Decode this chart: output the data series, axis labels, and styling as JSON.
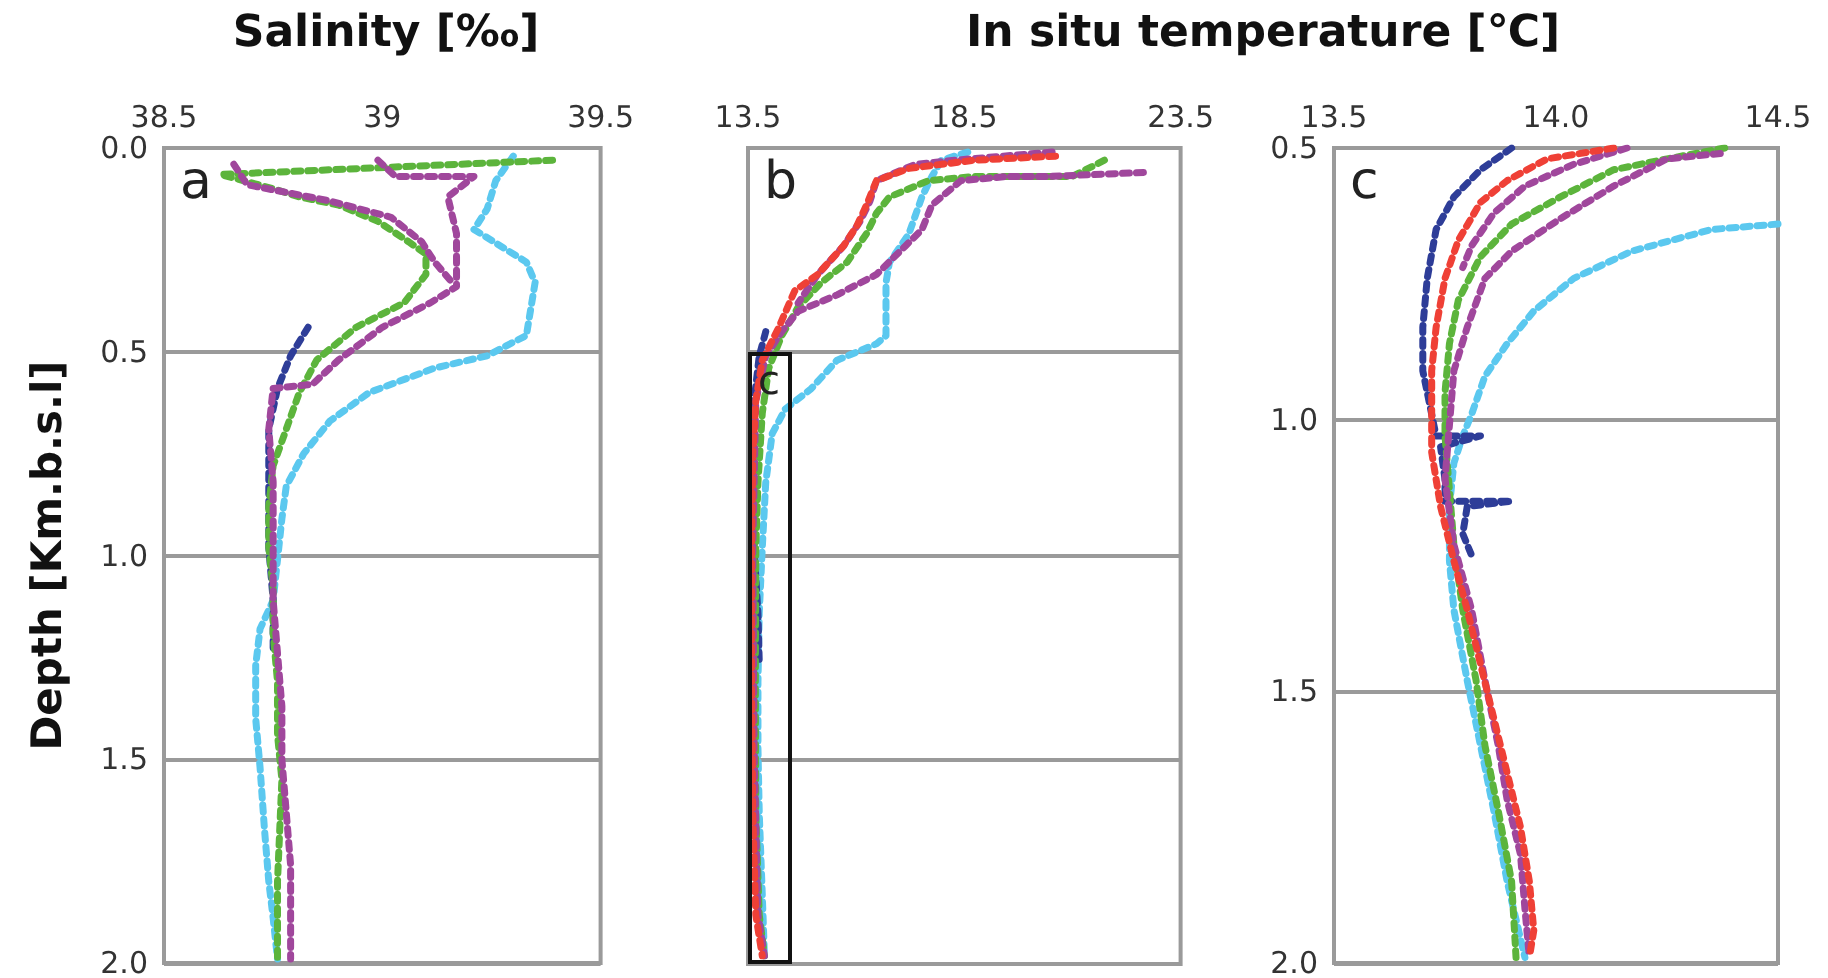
{
  "chart_data": [
    {
      "type": "line",
      "title": "Salinity [‰]",
      "ylabel": "Depth [Km.b.s.l]",
      "annotations": [
        "a"
      ],
      "xlim": [
        38.5,
        39.5
      ],
      "xticks": [
        38.5,
        39,
        39.5
      ],
      "ylim": [
        2.0,
        0.0
      ],
      "yticks": [
        {
          "value": 0,
          "label": "0.0"
        },
        {
          "value": 0.5,
          "label": "0.5"
        },
        {
          "value": 1,
          "label": "1.0"
        },
        {
          "value": 1.5,
          "label": "1.5"
        },
        {
          "value": 2,
          "label": "2.0"
        }
      ],
      "grid": "y",
      "marker": "none",
      "line_style": "dotted",
      "series": [
        {
          "color": "#5bc8ef",
          "x": [
            39.3,
            39.26,
            39.24,
            39.21,
            39.33,
            39.35,
            39.33,
            39.24,
            39.12,
            38.97,
            38.88,
            38.82,
            38.78,
            38.77,
            38.76,
            38.75,
            38.72,
            38.71,
            38.71,
            38.72,
            38.73,
            38.74,
            38.75,
            38.76
          ],
          "values": [
            0.02,
            0.08,
            0.15,
            0.2,
            0.28,
            0.33,
            0.46,
            0.51,
            0.54,
            0.6,
            0.67,
            0.75,
            0.83,
            0.91,
            1.01,
            1.11,
            1.18,
            1.27,
            1.4,
            1.52,
            1.67,
            1.8,
            1.89,
            1.99
          ]
        },
        {
          "color": "#2e3d98",
          "x": [
            38.83,
            38.79,
            38.76,
            38.74,
            38.74,
            38.74,
            38.74,
            38.75,
            38.75
          ],
          "values": [
            0.44,
            0.51,
            0.59,
            0.69,
            0.78,
            0.88,
            0.98,
            1.11,
            1.24
          ]
        },
        {
          "color": "#5cb43c",
          "x": [
            39.39,
            38.63,
            38.75,
            38.81,
            38.9,
            38.99,
            39.06,
            39.1,
            39.1,
            39.05,
            38.94,
            38.85,
            38.81,
            38.78,
            38.75,
            38.74,
            38.74,
            38.75,
            38.75,
            38.76,
            38.76,
            38.77,
            38.76,
            38.76
          ],
          "values": [
            0.03,
            0.065,
            0.1,
            0.12,
            0.14,
            0.18,
            0.23,
            0.26,
            0.31,
            0.38,
            0.44,
            0.52,
            0.6,
            0.69,
            0.78,
            0.88,
            0.98,
            1.08,
            1.19,
            1.31,
            1.44,
            1.55,
            1.8,
            1.99
          ]
        },
        {
          "color": "#a0479c",
          "x": [
            38.99,
            39.03,
            39.21,
            39.15,
            39.17,
            39.17,
            39.11,
            39.0,
            38.9,
            38.84,
            38.75,
            38.74,
            38.75,
            38.75,
            38.75,
            38.76,
            38.77,
            38.77,
            38.78,
            38.79,
            38.79,
            38.79
          ],
          "values": [
            0.03,
            0.07,
            0.07,
            0.12,
            0.21,
            0.34,
            0.38,
            0.44,
            0.52,
            0.58,
            0.59,
            0.69,
            0.82,
            0.98,
            1.11,
            1.24,
            1.37,
            1.5,
            1.63,
            1.76,
            1.89,
            1.99
          ]
        },
        {
          "color": "#a0479c",
          "x": [
            38.66,
            38.69,
            38.88,
            39.02,
            39.09,
            39.12,
            39.16
          ],
          "values": [
            0.04,
            0.09,
            0.13,
            0.17,
            0.23,
            0.28,
            0.33
          ]
        }
      ]
    },
    {
      "type": "line",
      "title": "In situ temperature [℃]",
      "annotations": [
        "b",
        {
          "text": "c",
          "x": 13.5,
          "y": 0.5
        }
      ],
      "xlim": [
        13.5,
        23.5
      ],
      "xticks": [
        13.5,
        18.5,
        23.5
      ],
      "ylim": [
        2.0,
        0.0
      ],
      "yticks": [
        0,
        0.5,
        1,
        1.5,
        2
      ],
      "grid": "y",
      "marker": "none",
      "line_style": "dotted",
      "tick_labels": "x",
      "series": [
        {
          "color": "#5bc8ef",
          "x": [
            18.58,
            17.97,
            17.75,
            17.52,
            17.22,
            16.77,
            16.69,
            16.69,
            16.47,
            15.56,
            14.96,
            14.36,
            14.06,
            13.91,
            13.83,
            13.76,
            13.73,
            13.73,
            13.76,
            13.82,
            13.88
          ],
          "values": [
            0.01,
            0.03,
            0.07,
            0.12,
            0.21,
            0.28,
            0.33,
            0.46,
            0.48,
            0.52,
            0.59,
            0.64,
            0.7,
            0.82,
            0.98,
            1.14,
            1.31,
            1.47,
            1.63,
            1.8,
            1.98
          ]
        },
        {
          "color": "#2e3d98",
          "x": [
            13.91,
            13.76,
            13.64,
            13.61,
            13.64,
            13.73,
            13.76
          ],
          "values": [
            0.45,
            0.51,
            0.62,
            0.75,
            0.98,
            1.14,
            1.26
          ]
        },
        {
          "color": "#5cb43c",
          "x": [
            21.74,
            20.99,
            18.73,
            17.67,
            16.77,
            16.47,
            16.24,
            15.79,
            15.19,
            14.66,
            14.28,
            13.98,
            13.83,
            13.73,
            13.68,
            13.67,
            13.68,
            13.76,
            13.88
          ],
          "values": [
            0.03,
            0.07,
            0.07,
            0.08,
            0.12,
            0.16,
            0.21,
            0.28,
            0.33,
            0.39,
            0.46,
            0.54,
            0.65,
            0.82,
            0.98,
            1.31,
            1.63,
            1.88,
            1.98
          ]
        },
        {
          "color": "#a0479c",
          "x": [
            22.64,
            20.38,
            19.48,
            18.42,
            17.75,
            17.52,
            17.14,
            16.47,
            15.56,
            15.11,
            14.66,
            14.28,
            13.91,
            13.68,
            13.61,
            13.64,
            13.73,
            13.88
          ],
          "values": [
            0.06,
            0.07,
            0.07,
            0.08,
            0.14,
            0.2,
            0.24,
            0.31,
            0.36,
            0.38,
            0.4,
            0.45,
            0.51,
            0.62,
            0.98,
            1.47,
            1.88,
            1.98
          ]
        },
        {
          "color": "#a0479c",
          "x": [
            20.53,
            18.27,
            17.37,
            16.47,
            16.32,
            16.09,
            15.71,
            15.11,
            14.66
          ],
          "values": [
            0.01,
            0.03,
            0.04,
            0.08,
            0.13,
            0.18,
            0.24,
            0.31,
            0.38
          ]
        },
        {
          "color": "#ef4036",
          "x": [
            20.61,
            18.73,
            17.22,
            16.47,
            16.24,
            16.02,
            15.71,
            15.11,
            14.58,
            14.21,
            13.83,
            13.68,
            13.61,
            13.58,
            13.58,
            13.61,
            13.68,
            13.83
          ],
          "values": [
            0.02,
            0.03,
            0.05,
            0.08,
            0.14,
            0.19,
            0.24,
            0.31,
            0.35,
            0.44,
            0.52,
            0.62,
            0.75,
            0.98,
            1.31,
            1.63,
            1.88,
            1.98
          ]
        }
      ]
    },
    {
      "type": "line",
      "annotations": [
        "c"
      ],
      "xlim": [
        13.5,
        14.5
      ],
      "xticks": [
        13.5,
        {
          "value": 14,
          "label": "14.0"
        },
        14.5
      ],
      "ylim": [
        2.0,
        0.5
      ],
      "yticks": [
        {
          "value": 0.5,
          "label": "0.5"
        },
        {
          "value": 1,
          "label": "1.0"
        },
        {
          "value": 1.5,
          "label": "1.5"
        },
        {
          "value": 2,
          "label": "2.0"
        }
      ],
      "grid": "y",
      "marker": "none",
      "line_style": "dotted",
      "series": [
        {
          "color": "#5bc8ef",
          "x": [
            14.5,
            14.35,
            14.17,
            14.04,
            13.95,
            13.89,
            13.84,
            13.81,
            13.79,
            13.77,
            13.76,
            13.76,
            13.77,
            13.8,
            13.83,
            13.86,
            13.89,
            13.93
          ],
          "values": [
            0.64,
            0.65,
            0.69,
            0.74,
            0.8,
            0.86,
            0.92,
            0.99,
            1.03,
            1.08,
            1.16,
            1.26,
            1.35,
            1.48,
            1.6,
            1.72,
            1.85,
            1.99
          ]
        },
        {
          "color": "#2e3d98",
          "x": [
            13.9,
            13.83,
            13.77,
            13.73,
            13.71,
            13.7,
            13.7,
            13.72,
            13.73,
            13.83,
            13.74,
            13.75,
            13.75,
            13.9,
            13.8,
            13.79,
            13.81
          ],
          "values": [
            0.5,
            0.54,
            0.59,
            0.65,
            0.74,
            0.83,
            0.91,
            0.99,
            1.03,
            1.03,
            1.05,
            1.11,
            1.15,
            1.15,
            1.16,
            1.21,
            1.25
          ]
        },
        {
          "color": "#5cb43c",
          "x": [
            14.38,
            14.25,
            14.13,
            14.01,
            13.9,
            13.83,
            13.78,
            13.76,
            13.75,
            13.75,
            13.76,
            13.77,
            13.79,
            13.82,
            13.84,
            13.87,
            13.9,
            13.91
          ],
          "values": [
            0.5,
            0.52,
            0.54,
            0.59,
            0.64,
            0.7,
            0.78,
            0.86,
            0.95,
            1.03,
            1.13,
            1.23,
            1.35,
            1.48,
            1.6,
            1.72,
            1.85,
            1.99
          ]
        },
        {
          "color": "#a0479c",
          "x": [
            14.37,
            14.25,
            14.13,
            14.01,
            13.9,
            13.84,
            13.8,
            13.77,
            13.76,
            13.75,
            13.77,
            13.81,
            13.84,
            13.87,
            13.89,
            13.92,
            13.93,
            13.94
          ],
          "values": [
            0.51,
            0.52,
            0.57,
            0.63,
            0.69,
            0.74,
            0.83,
            0.91,
            1.01,
            1.11,
            1.23,
            1.35,
            1.48,
            1.6,
            1.7,
            1.8,
            1.9,
            1.99
          ]
        },
        {
          "color": "#a0479c",
          "x": [
            14.16,
            14.04,
            13.93,
            13.86,
            13.81,
            13.79
          ],
          "values": [
            0.5,
            0.53,
            0.57,
            0.62,
            0.68,
            0.72
          ]
        },
        {
          "color": "#ef4036",
          "x": [
            14.13,
            13.98,
            13.89,
            13.83,
            13.78,
            13.75,
            13.73,
            13.72,
            13.72,
            13.72,
            13.74,
            13.77,
            13.8,
            13.83,
            13.86,
            13.89,
            13.92,
            13.94,
            13.95,
            13.94
          ],
          "values": [
            0.5,
            0.52,
            0.56,
            0.6,
            0.67,
            0.74,
            0.83,
            0.91,
            0.99,
            1.06,
            1.16,
            1.26,
            1.35,
            1.45,
            1.55,
            1.65,
            1.75,
            1.85,
            1.94,
            1.99
          ]
        }
      ]
    }
  ]
}
